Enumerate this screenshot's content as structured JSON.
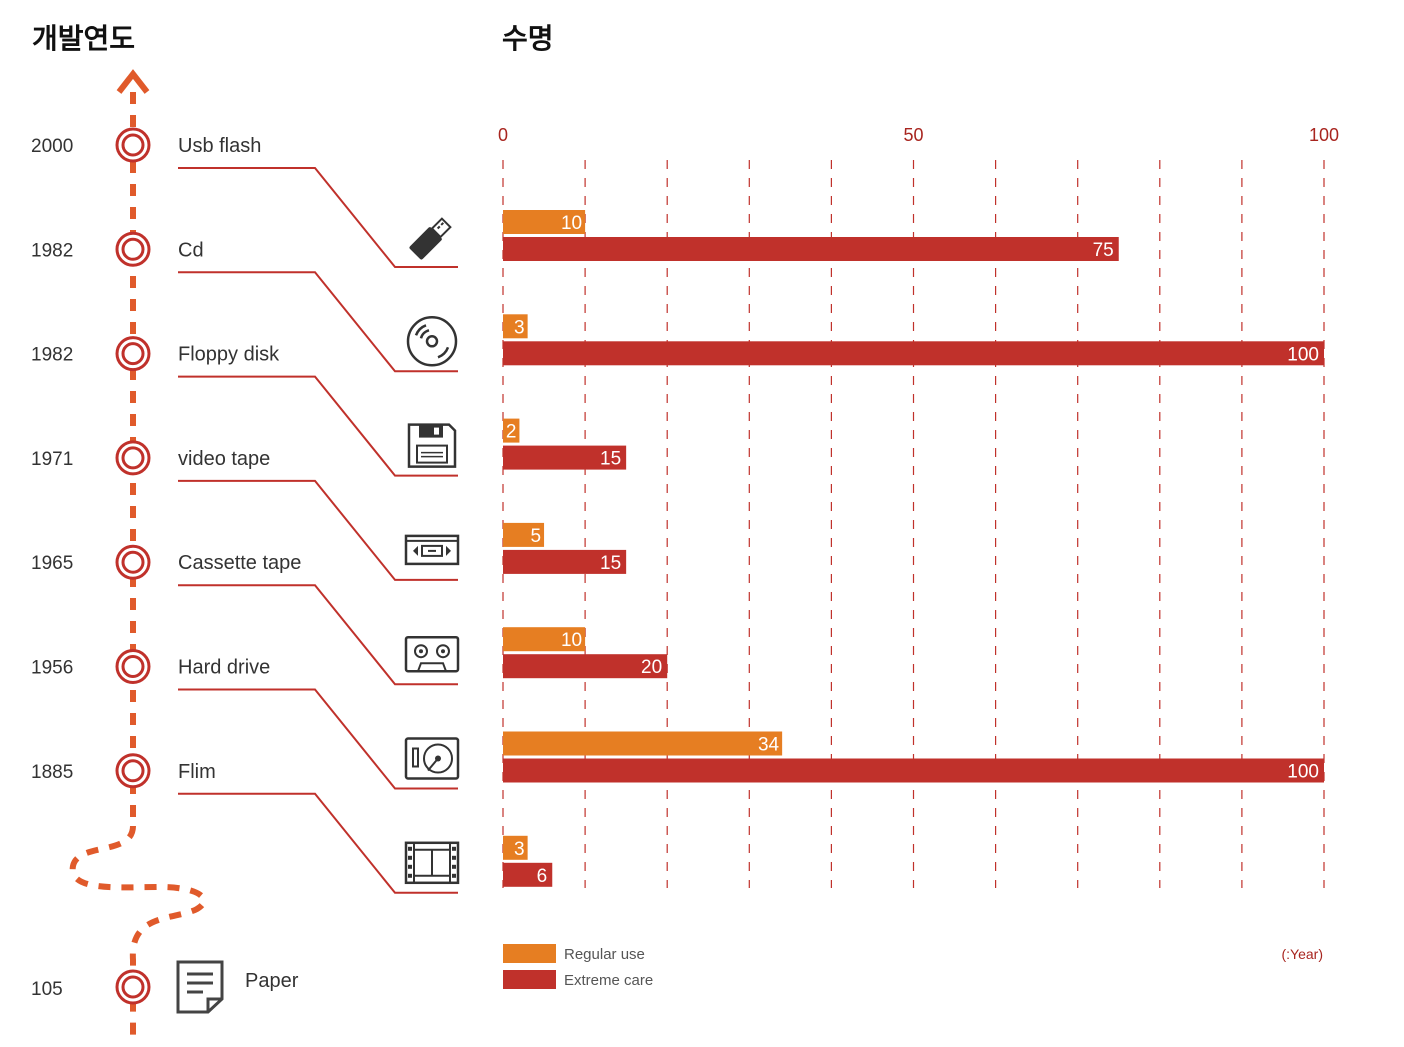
{
  "header": {
    "left_title": "개발연도",
    "right_title": "수명"
  },
  "timeline": [
    {
      "year": "2000",
      "name": "Usb flash",
      "icon": "usb-flash-icon"
    },
    {
      "year": "1982",
      "name": "Cd",
      "icon": "cd-icon"
    },
    {
      "year": "1982",
      "name": "Floppy disk",
      "icon": "floppy-disk-icon"
    },
    {
      "year": "1971",
      "name": "video tape",
      "icon": "video-tape-icon"
    },
    {
      "year": "1965",
      "name": "Cassette tape",
      "icon": "cassette-tape-icon"
    },
    {
      "year": "1956",
      "name": "Hard drive",
      "icon": "hard-drive-icon"
    },
    {
      "year": "1885",
      "name": "Flim",
      "icon": "film-icon"
    }
  ],
  "paper": {
    "year": "105",
    "name": "Paper",
    "icon": "paper-document-icon"
  },
  "colors": {
    "timeline": "#e05a2b",
    "marker": "#c0312b",
    "connector": "#c0312b",
    "regular": "#e67e22",
    "extreme": "#c0312b",
    "grid": "#c0312b",
    "tick_text": "#a8251f",
    "icon": "#333333"
  },
  "chart_data": {
    "type": "bar",
    "orientation": "horizontal",
    "categories": [
      "Usb flash",
      "Cd",
      "Floppy disk",
      "video tape",
      "Cassette tape",
      "Hard drive",
      "Flim"
    ],
    "series": [
      {
        "name": "Regular use",
        "values": [
          10,
          3,
          2,
          5,
          10,
          34,
          3
        ]
      },
      {
        "name": "Extreme care",
        "values": [
          75,
          100,
          15,
          15,
          20,
          100,
          6
        ]
      }
    ],
    "xlim": [
      0,
      100
    ],
    "xticks": [
      "0",
      "50",
      "100"
    ],
    "grid_step": 10,
    "grid": true,
    "legend_position": "bottom-left",
    "unit_label": "(:Year)"
  }
}
